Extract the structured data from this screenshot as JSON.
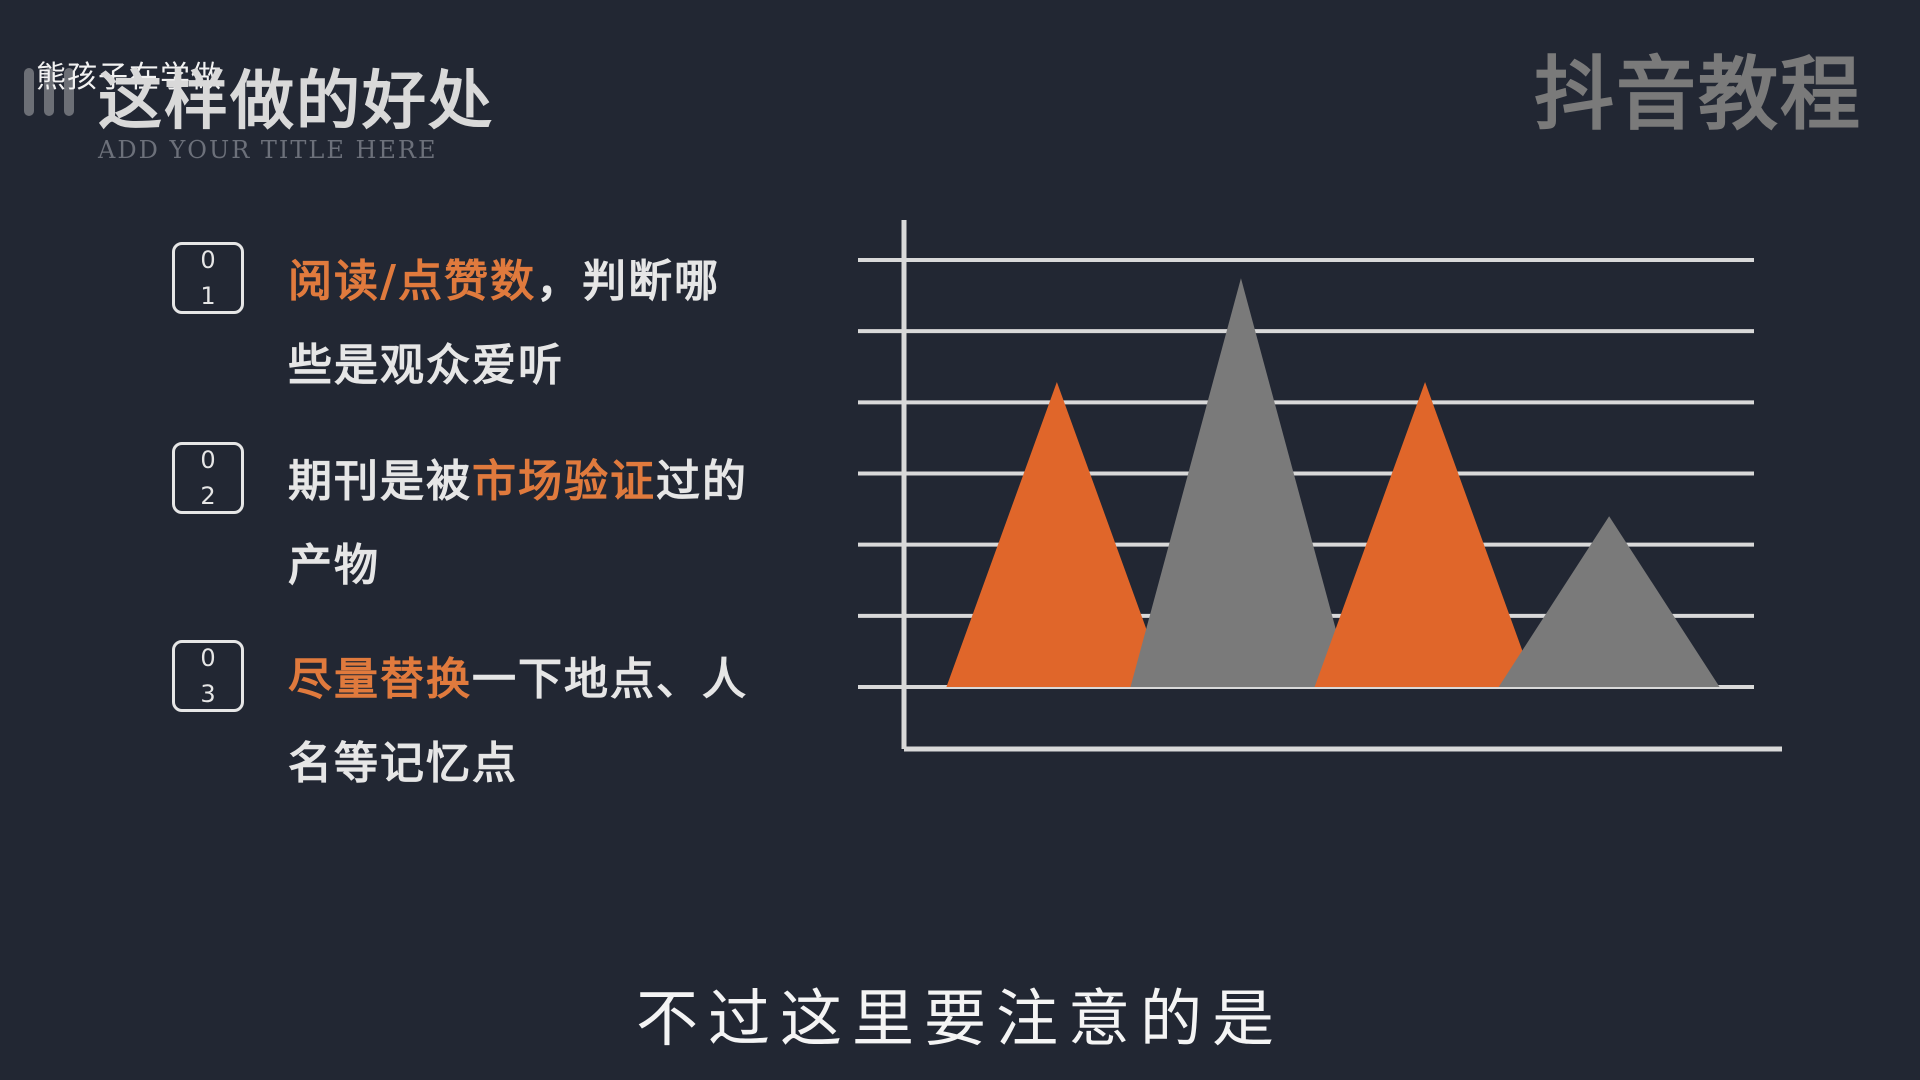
{
  "header": {
    "uploader_watermark": "熊孩子在学做",
    "title": "这样做的好处",
    "subtitle": "ADD YOUR TITLE HERE",
    "brand_watermark": "抖音教程"
  },
  "points": [
    {
      "num_top": "0",
      "num_bottom": "1",
      "highlight": "阅读/点赞数",
      "rest": "，判断哪些是观众爱听"
    },
    {
      "num_top": "0",
      "num_bottom": "2",
      "lead": "期刊是被",
      "highlight": "市场验证",
      "rest": "过的产物"
    },
    {
      "num_top": "0",
      "num_bottom": "3",
      "highlight": "尽量替换",
      "rest": "一下地点、人名等记忆点"
    }
  ],
  "chart_data": {
    "type": "area",
    "description_free": true,
    "peaks": [
      {
        "center": 1,
        "height": 5,
        "color": "#e0662a"
      },
      {
        "center": 2,
        "height": 6.7,
        "color": "#7a7a7a"
      },
      {
        "center": 3,
        "height": 5,
        "color": "#e0662a"
      },
      {
        "center": 4,
        "height": 2.8,
        "color": "#7a7a7a"
      }
    ],
    "ylim": [
      0,
      7
    ],
    "gridlines": 7,
    "grid": true,
    "colors": {
      "accent": "#e0662a",
      "secondary": "#7a7a7a",
      "axis": "#d9d9d9"
    }
  },
  "caption": "不过这里要注意的是"
}
